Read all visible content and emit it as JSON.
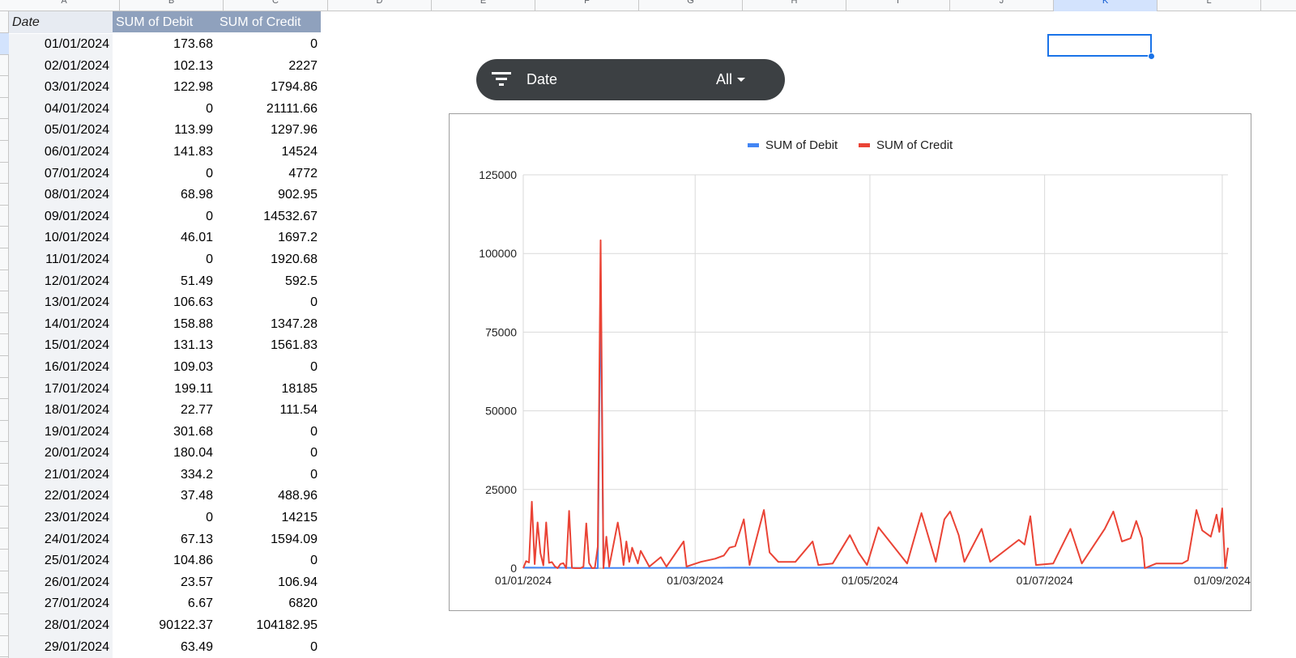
{
  "sheet": {
    "columns": [
      {
        "label": "A",
        "selected": false
      },
      {
        "label": "B",
        "selected": false
      },
      {
        "label": "C",
        "selected": false
      },
      {
        "label": "D",
        "selected": false
      },
      {
        "label": "E",
        "selected": false
      },
      {
        "label": "F",
        "selected": false
      },
      {
        "label": "G",
        "selected": false
      },
      {
        "label": "H",
        "selected": false
      },
      {
        "label": "I",
        "selected": false
      },
      {
        "label": "J",
        "selected": false
      },
      {
        "label": "K",
        "selected": true
      },
      {
        "label": "L",
        "selected": false
      }
    ]
  },
  "pivot": {
    "headers": {
      "date": "Date",
      "debit": "SUM of Debit",
      "credit": "SUM of Credit"
    },
    "rows": [
      {
        "date": "01/01/2024",
        "debit": "173.68",
        "credit": "0"
      },
      {
        "date": "02/01/2024",
        "debit": "102.13",
        "credit": "2227"
      },
      {
        "date": "03/01/2024",
        "debit": "122.98",
        "credit": "1794.86"
      },
      {
        "date": "04/01/2024",
        "debit": "0",
        "credit": "21111.66"
      },
      {
        "date": "05/01/2024",
        "debit": "113.99",
        "credit": "1297.96"
      },
      {
        "date": "06/01/2024",
        "debit": "141.83",
        "credit": "14524"
      },
      {
        "date": "07/01/2024",
        "debit": "0",
        "credit": "4772"
      },
      {
        "date": "08/01/2024",
        "debit": "68.98",
        "credit": "902.95"
      },
      {
        "date": "09/01/2024",
        "debit": "0",
        "credit": "14532.67"
      },
      {
        "date": "10/01/2024",
        "debit": "46.01",
        "credit": "1697.2"
      },
      {
        "date": "11/01/2024",
        "debit": "0",
        "credit": "1920.68"
      },
      {
        "date": "12/01/2024",
        "debit": "51.49",
        "credit": "592.5"
      },
      {
        "date": "13/01/2024",
        "debit": "106.63",
        "credit": "0"
      },
      {
        "date": "14/01/2024",
        "debit": "158.88",
        "credit": "1347.28"
      },
      {
        "date": "15/01/2024",
        "debit": "131.13",
        "credit": "1561.83"
      },
      {
        "date": "16/01/2024",
        "debit": "109.03",
        "credit": "0"
      },
      {
        "date": "17/01/2024",
        "debit": "199.11",
        "credit": "18185"
      },
      {
        "date": "18/01/2024",
        "debit": "22.77",
        "credit": "111.54"
      },
      {
        "date": "19/01/2024",
        "debit": "301.68",
        "credit": "0"
      },
      {
        "date": "20/01/2024",
        "debit": "180.04",
        "credit": "0"
      },
      {
        "date": "21/01/2024",
        "debit": "334.2",
        "credit": "0"
      },
      {
        "date": "22/01/2024",
        "debit": "37.48",
        "credit": "488.96"
      },
      {
        "date": "23/01/2024",
        "debit": "0",
        "credit": "14215"
      },
      {
        "date": "24/01/2024",
        "debit": "67.13",
        "credit": "1594.09"
      },
      {
        "date": "25/01/2024",
        "debit": "104.86",
        "credit": "0"
      },
      {
        "date": "26/01/2024",
        "debit": "23.57",
        "credit": "106.94"
      },
      {
        "date": "27/01/2024",
        "debit": "6.67",
        "credit": "6820"
      },
      {
        "date": "28/01/2024",
        "debit": "90122.37",
        "credit": "104182.95"
      },
      {
        "date": "29/01/2024",
        "debit": "63.49",
        "credit": "0"
      }
    ]
  },
  "slicer": {
    "label": "Date",
    "value": "All",
    "icon": "filter-icon"
  },
  "colors": {
    "debit": "#4285f4",
    "credit": "#ea4335",
    "slicer_bg": "#3c4043",
    "pivot_header": "#8fa1bd"
  },
  "chart_data": {
    "type": "line",
    "legend": {
      "position": "top"
    },
    "x_ticks": [
      "01/01/2024",
      "01/03/2024",
      "01/05/2024",
      "01/07/2024",
      "01/09/2024"
    ],
    "x_range": [
      "01/01/2024",
      "03/09/2024"
    ],
    "y_ticks": [
      "0",
      "25000",
      "50000",
      "75000",
      "100000",
      "125000"
    ],
    "ylim": [
      0,
      125000
    ],
    "grid": true,
    "series": [
      {
        "name": "SUM of Debit",
        "color": "#4285f4",
        "points": [
          {
            "x": "01/01/2024",
            "y": 174
          },
          {
            "x": "15/01/2024",
            "y": 131
          },
          {
            "x": "27/01/2024",
            "y": 7
          },
          {
            "x": "28/01/2024",
            "y": 90122
          },
          {
            "x": "29/01/2024",
            "y": 63
          },
          {
            "x": "15/03/2024",
            "y": 150
          },
          {
            "x": "15/05/2024",
            "y": 120
          },
          {
            "x": "15/07/2024",
            "y": 140
          },
          {
            "x": "03/09/2024",
            "y": 100
          }
        ]
      },
      {
        "name": "SUM of Credit",
        "color": "#ea4335",
        "points": [
          {
            "x": "01/01/2024",
            "y": 0
          },
          {
            "x": "02/01/2024",
            "y": 2227
          },
          {
            "x": "03/01/2024",
            "y": 1795
          },
          {
            "x": "04/01/2024",
            "y": 21112
          },
          {
            "x": "05/01/2024",
            "y": 1298
          },
          {
            "x": "06/01/2024",
            "y": 14524
          },
          {
            "x": "07/01/2024",
            "y": 4772
          },
          {
            "x": "08/01/2024",
            "y": 903
          },
          {
            "x": "09/01/2024",
            "y": 14533
          },
          {
            "x": "10/01/2024",
            "y": 1697
          },
          {
            "x": "11/01/2024",
            "y": 1921
          },
          {
            "x": "12/01/2024",
            "y": 593
          },
          {
            "x": "13/01/2024",
            "y": 0
          },
          {
            "x": "14/01/2024",
            "y": 1347
          },
          {
            "x": "15/01/2024",
            "y": 1562
          },
          {
            "x": "16/01/2024",
            "y": 0
          },
          {
            "x": "17/01/2024",
            "y": 18185
          },
          {
            "x": "18/01/2024",
            "y": 112
          },
          {
            "x": "19/01/2024",
            "y": 0
          },
          {
            "x": "20/01/2024",
            "y": 0
          },
          {
            "x": "21/01/2024",
            "y": 0
          },
          {
            "x": "22/01/2024",
            "y": 489
          },
          {
            "x": "23/01/2024",
            "y": 14215
          },
          {
            "x": "24/01/2024",
            "y": 1594
          },
          {
            "x": "25/01/2024",
            "y": 0
          },
          {
            "x": "26/01/2024",
            "y": 107
          },
          {
            "x": "27/01/2024",
            "y": 6820
          },
          {
            "x": "28/01/2024",
            "y": 104183
          },
          {
            "x": "29/01/2024",
            "y": 0
          },
          {
            "x": "30/01/2024",
            "y": 10000
          },
          {
            "x": "31/01/2024",
            "y": 500
          },
          {
            "x": "03/02/2024",
            "y": 14500
          },
          {
            "x": "04/02/2024",
            "y": 9000
          },
          {
            "x": "05/02/2024",
            "y": 1000
          },
          {
            "x": "06/02/2024",
            "y": 8500
          },
          {
            "x": "07/02/2024",
            "y": 2000
          },
          {
            "x": "08/02/2024",
            "y": 6500
          },
          {
            "x": "10/02/2024",
            "y": 1500
          },
          {
            "x": "11/02/2024",
            "y": 5500
          },
          {
            "x": "14/02/2024",
            "y": 500
          },
          {
            "x": "18/02/2024",
            "y": 3500
          },
          {
            "x": "20/02/2024",
            "y": 500
          },
          {
            "x": "26/02/2024",
            "y": 8500
          },
          {
            "x": "27/02/2024",
            "y": 500
          },
          {
            "x": "03/03/2024",
            "y": 2000
          },
          {
            "x": "08/03/2024",
            "y": 3000
          },
          {
            "x": "11/03/2024",
            "y": 4000
          },
          {
            "x": "13/03/2024",
            "y": 6500
          },
          {
            "x": "15/03/2024",
            "y": 7000
          },
          {
            "x": "18/03/2024",
            "y": 15500
          },
          {
            "x": "20/03/2024",
            "y": 1000
          },
          {
            "x": "25/03/2024",
            "y": 18500
          },
          {
            "x": "27/03/2024",
            "y": 5000
          },
          {
            "x": "30/03/2024",
            "y": 2000
          },
          {
            "x": "05/04/2024",
            "y": 2000
          },
          {
            "x": "11/04/2024",
            "y": 8500
          },
          {
            "x": "13/04/2024",
            "y": 1000
          },
          {
            "x": "18/04/2024",
            "y": 1500
          },
          {
            "x": "24/04/2024",
            "y": 10500
          },
          {
            "x": "27/04/2024",
            "y": 5000
          },
          {
            "x": "30/04/2024",
            "y": 1000
          },
          {
            "x": "04/05/2024",
            "y": 13000
          },
          {
            "x": "14/05/2024",
            "y": 1500
          },
          {
            "x": "19/05/2024",
            "y": 17500
          },
          {
            "x": "24/05/2024",
            "y": 2000
          },
          {
            "x": "27/05/2024",
            "y": 15500
          },
          {
            "x": "29/05/2024",
            "y": 18000
          },
          {
            "x": "30/05/2024",
            "y": 15500
          },
          {
            "x": "01/06/2024",
            "y": 10500
          },
          {
            "x": "03/06/2024",
            "y": 2000
          },
          {
            "x": "09/06/2024",
            "y": 12500
          },
          {
            "x": "12/06/2024",
            "y": 2000
          },
          {
            "x": "22/06/2024",
            "y": 9000
          },
          {
            "x": "24/06/2024",
            "y": 7500
          },
          {
            "x": "26/06/2024",
            "y": 16500
          },
          {
            "x": "28/06/2024",
            "y": 1000
          },
          {
            "x": "04/07/2024",
            "y": 1500
          },
          {
            "x": "10/07/2024",
            "y": 12500
          },
          {
            "x": "14/07/2024",
            "y": 1500
          },
          {
            "x": "22/07/2024",
            "y": 12500
          },
          {
            "x": "25/07/2024",
            "y": 18000
          },
          {
            "x": "28/07/2024",
            "y": 8500
          },
          {
            "x": "31/07/2024",
            "y": 9500
          },
          {
            "x": "02/08/2024",
            "y": 15000
          },
          {
            "x": "04/08/2024",
            "y": 9500
          },
          {
            "x": "09/08/2024",
            "y": 1500
          },
          {
            "x": "14/08/2024",
            "y": 1500
          },
          {
            "x": "18/08/2024",
            "y": 1500
          },
          {
            "x": "25/08/2024",
            "y": 12000
          },
          {
            "x": "28/08/2024",
            "y": 10000
          },
          {
            "x": "31/08/2024",
            "y": 11500
          },
          {
            "x": "05/08/2024",
            "y": 0
          },
          {
            "x": "20/08/2024",
            "y": 2500
          },
          {
            "x": "23/08/2024",
            "y": 18500
          },
          {
            "x": "30/08/2024",
            "y": 17000
          },
          {
            "x": "01/09/2024",
            "y": 19000
          },
          {
            "x": "02/09/2024",
            "y": 0
          },
          {
            "x": "03/09/2024",
            "y": 6500
          }
        ]
      }
    ]
  }
}
